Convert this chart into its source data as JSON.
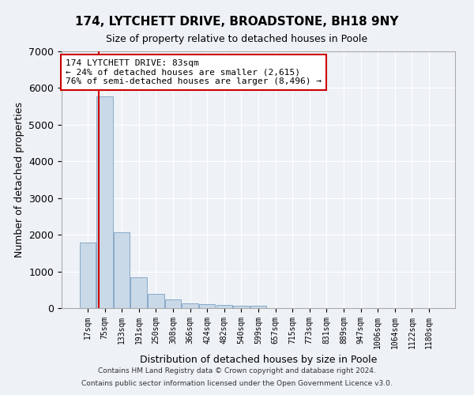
{
  "title": "174, LYTCHETT DRIVE, BROADSTONE, BH18 9NY",
  "subtitle": "Size of property relative to detached houses in Poole",
  "xlabel": "Distribution of detached houses by size in Poole",
  "ylabel": "Number of detached properties",
  "categories": [
    "17sqm",
    "75sqm",
    "133sqm",
    "191sqm",
    "250sqm",
    "308sqm",
    "366sqm",
    "424sqm",
    "482sqm",
    "540sqm",
    "599sqm",
    "657sqm",
    "715sqm",
    "773sqm",
    "831sqm",
    "889sqm",
    "947sqm",
    "1006sqm",
    "1064sqm",
    "1122sqm",
    "1180sqm"
  ],
  "bar_values": [
    1780,
    5780,
    2060,
    830,
    390,
    230,
    130,
    110,
    80,
    60,
    70,
    0,
    0,
    0,
    0,
    0,
    0,
    0,
    0,
    0,
    0
  ],
  "bar_color": "#c9d9e8",
  "bar_edgecolor": "#88aac8",
  "ylim": [
    0,
    7000
  ],
  "yticks": [
    0,
    1000,
    2000,
    3000,
    4000,
    5000,
    6000,
    7000
  ],
  "property_line_color": "#cc0000",
  "annotation_text": "174 LYTCHETT DRIVE: 83sqm\n← 24% of detached houses are smaller (2,615)\n76% of semi-detached houses are larger (8,496) →",
  "annotation_box_color": "#ffffff",
  "annotation_box_edgecolor": "#cc0000",
  "footer1": "Contains HM Land Registry data © Crown copyright and database right 2024.",
  "footer2": "Contains public sector information licensed under the Open Government Licence v3.0.",
  "bg_color": "#eef2f6",
  "plot_bg_color": "#eef2f6",
  "grid_color": "#ffffff"
}
